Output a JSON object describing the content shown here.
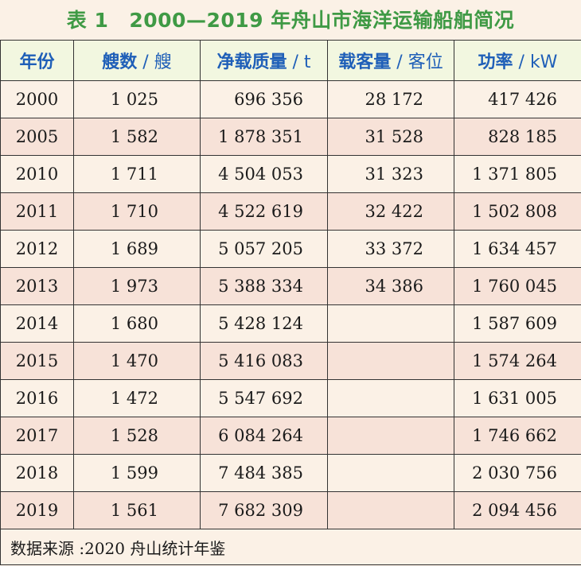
{
  "title": {
    "number": "表 1",
    "text": "2000—2019 年舟山市海洋运输船舶简况"
  },
  "headers": {
    "year": {
      "label": "年份",
      "unit": ""
    },
    "ships": {
      "label": "艘数",
      "unit": " / 艘"
    },
    "tonnage": {
      "label": "净载质量",
      "unit": " / t"
    },
    "passengers": {
      "label": "载客量",
      "unit": " / 客位"
    },
    "power": {
      "label": "功率",
      "unit": " / kW"
    }
  },
  "rows": [
    {
      "year": "2000",
      "ships": "1 025",
      "tonnage": "696 356",
      "passengers": "28 172",
      "power": "417 426"
    },
    {
      "year": "2005",
      "ships": "1 582",
      "tonnage": "1 878 351",
      "passengers": "31 528",
      "power": "828 185"
    },
    {
      "year": "2010",
      "ships": "1 711",
      "tonnage": "4 504 053",
      "passengers": "31 323",
      "power": "1 371 805"
    },
    {
      "year": "2011",
      "ships": "1 710",
      "tonnage": "4 522 619",
      "passengers": "32 422",
      "power": "1 502 808"
    },
    {
      "year": "2012",
      "ships": "1 689",
      "tonnage": "5 057 205",
      "passengers": "33 372",
      "power": "1 634 457"
    },
    {
      "year": "2013",
      "ships": "1 973",
      "tonnage": "5 388 334",
      "passengers": "34 386",
      "power": "1 760 045"
    },
    {
      "year": "2014",
      "ships": "1 680",
      "tonnage": "5 428 124",
      "passengers": "",
      "power": "1 587 609"
    },
    {
      "year": "2015",
      "ships": "1 470",
      "tonnage": "5 416 083",
      "passengers": "",
      "power": "1 574 264"
    },
    {
      "year": "2016",
      "ships": "1 472",
      "tonnage": "5 547 692",
      "passengers": "",
      "power": "1 631 005"
    },
    {
      "year": "2017",
      "ships": "1 528",
      "tonnage": "6 084 264",
      "passengers": "",
      "power": "1 746 662"
    },
    {
      "year": "2018",
      "ships": "1 599",
      "tonnage": "7 484 385",
      "passengers": "",
      "power": "2 030 756"
    },
    {
      "year": "2019",
      "ships": "1 561",
      "tonnage": "7 682 309",
      "passengers": "",
      "power": "2 094 456"
    }
  ],
  "source": "数据来源 :2020 舟山统计年鉴",
  "colors": {
    "title": "#3f9a45",
    "header_text": "#1f5fb8",
    "header_bg": "#f2f7e0",
    "row_odd_bg": "#f7e2d8",
    "row_even_bg": "#fbf1e6",
    "border": "#333333"
  }
}
